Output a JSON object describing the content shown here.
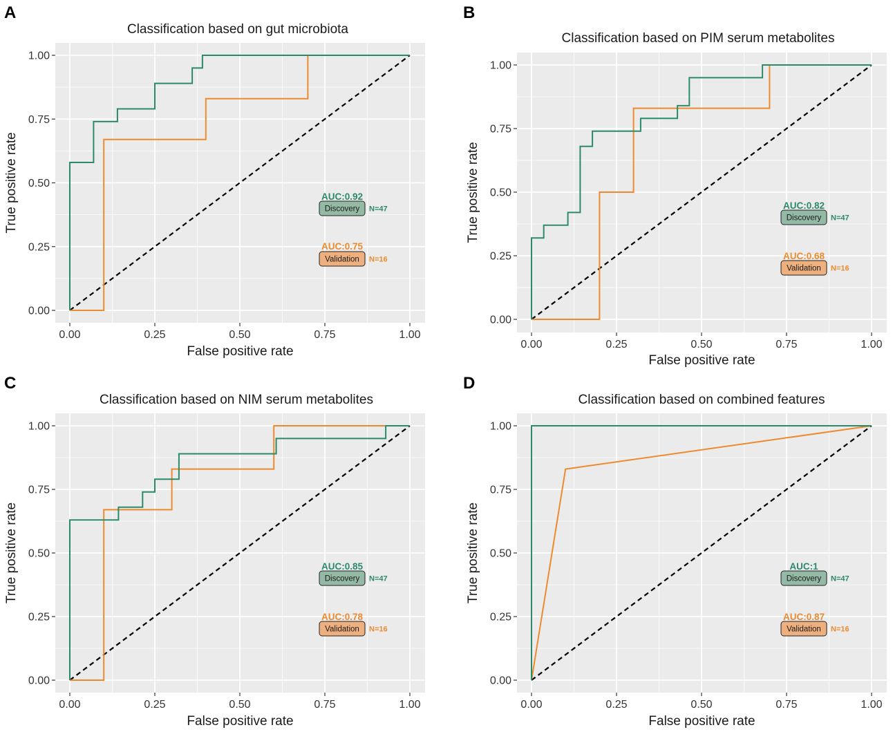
{
  "colors": {
    "discovery": "#2a8a6a",
    "validation": "#ed8a2e",
    "discovery_badge": "#94b9a4",
    "validation_badge": "#efb07f",
    "panel_bg": "#ebebeb",
    "grid": "#ffffff",
    "diagonal": "#000000"
  },
  "chart_data": [
    {
      "panel": "A",
      "type": "line",
      "title": "Classification based on gut microbiota",
      "xlabel": "False positive rate",
      "ylabel": "True positive rate",
      "xlim": [
        0,
        1
      ],
      "ylim": [
        0,
        1
      ],
      "xticks": [
        "0.00",
        "0.25",
        "0.50",
        "0.75",
        "1.00"
      ],
      "yticks": [
        "0.00",
        "0.25",
        "0.50",
        "0.75",
        "1.00"
      ],
      "series": [
        {
          "name": "Discovery",
          "auc": "AUC:0.92",
          "n": "N=47",
          "x": [
            0,
            0,
            0.07,
            0.07,
            0.14,
            0.14,
            0.25,
            0.25,
            0.36,
            0.36,
            0.39,
            0.39,
            1
          ],
          "y": [
            0,
            0.58,
            0.58,
            0.74,
            0.74,
            0.79,
            0.79,
            0.89,
            0.89,
            0.95,
            0.95,
            1,
            1
          ]
        },
        {
          "name": "Validation",
          "auc": "AUC:0.75",
          "n": "N=16",
          "x": [
            0,
            0.1,
            0.1,
            0.4,
            0.4,
            0.7,
            0.7,
            1
          ],
          "y": [
            0,
            0,
            0.67,
            0.67,
            0.83,
            0.83,
            1,
            1
          ]
        }
      ]
    },
    {
      "panel": "B",
      "type": "line",
      "title": "Classification based on PIM serum metabolites",
      "xlabel": "False positive rate",
      "ylabel": "True positive rate",
      "xlim": [
        0,
        1
      ],
      "ylim": [
        0,
        1
      ],
      "xticks": [
        "0.00",
        "0.25",
        "0.50",
        "0.75",
        "1.00"
      ],
      "yticks": [
        "0.00",
        "0.25",
        "0.50",
        "0.75",
        "1.00"
      ],
      "series": [
        {
          "name": "Discovery",
          "auc": "AUC:0.82",
          "n": "N=47",
          "x": [
            0,
            0,
            0.036,
            0.036,
            0.107,
            0.107,
            0.143,
            0.143,
            0.179,
            0.179,
            0.321,
            0.321,
            0.429,
            0.429,
            0.464,
            0.464,
            0.679,
            0.679,
            1
          ],
          "y": [
            0,
            0.32,
            0.32,
            0.37,
            0.37,
            0.42,
            0.42,
            0.68,
            0.68,
            0.74,
            0.74,
            0.79,
            0.79,
            0.84,
            0.84,
            0.95,
            0.95,
            1,
            1
          ]
        },
        {
          "name": "Validation",
          "auc": "AUC:0.68",
          "n": "N=16",
          "x": [
            0,
            0.2,
            0.2,
            0.3,
            0.3,
            0.7,
            0.7,
            1
          ],
          "y": [
            0,
            0,
            0.5,
            0.5,
            0.83,
            0.83,
            1,
            1
          ]
        }
      ]
    },
    {
      "panel": "C",
      "type": "line",
      "title": "Classification based on NIM serum metabolites",
      "xlabel": "False positive rate",
      "ylabel": "True positive rate",
      "xlim": [
        0,
        1
      ],
      "ylim": [
        0,
        1
      ],
      "xticks": [
        "0.00",
        "0.25",
        "0.50",
        "0.75",
        "1.00"
      ],
      "yticks": [
        "0.00",
        "0.25",
        "0.50",
        "0.75",
        "1.00"
      ],
      "series": [
        {
          "name": "Discovery",
          "auc": "AUC:0.85",
          "n": "N=47",
          "x": [
            0,
            0,
            0.143,
            0.143,
            0.214,
            0.214,
            0.25,
            0.25,
            0.321,
            0.321,
            0.607,
            0.607,
            0.929,
            0.929,
            1
          ],
          "y": [
            0,
            0.63,
            0.63,
            0.68,
            0.68,
            0.74,
            0.74,
            0.79,
            0.79,
            0.89,
            0.89,
            0.95,
            0.95,
            1,
            1
          ]
        },
        {
          "name": "Validation",
          "auc": "AUC:0.78",
          "n": "N=16",
          "x": [
            0,
            0.1,
            0.1,
            0.3,
            0.3,
            0.6,
            0.6,
            1
          ],
          "y": [
            0,
            0,
            0.67,
            0.67,
            0.83,
            0.83,
            1,
            1
          ]
        }
      ]
    },
    {
      "panel": "D",
      "type": "line",
      "title": "Classification based on combined features",
      "xlabel": "False positive rate",
      "ylabel": "True positive rate",
      "xlim": [
        0,
        1
      ],
      "ylim": [
        0,
        1
      ],
      "xticks": [
        "0.00",
        "0.25",
        "0.50",
        "0.75",
        "1.00"
      ],
      "yticks": [
        "0.00",
        "0.25",
        "0.50",
        "0.75",
        "1.00"
      ],
      "series": [
        {
          "name": "Discovery",
          "auc": "AUC:1",
          "n": "N=47",
          "x": [
            0,
            0,
            1
          ],
          "y": [
            0,
            1,
            1
          ]
        },
        {
          "name": "Validation",
          "auc": "AUC:0.87",
          "n": "N=16",
          "x": [
            0,
            0.1,
            1
          ],
          "y": [
            0,
            0.83,
            1
          ]
        }
      ]
    }
  ]
}
